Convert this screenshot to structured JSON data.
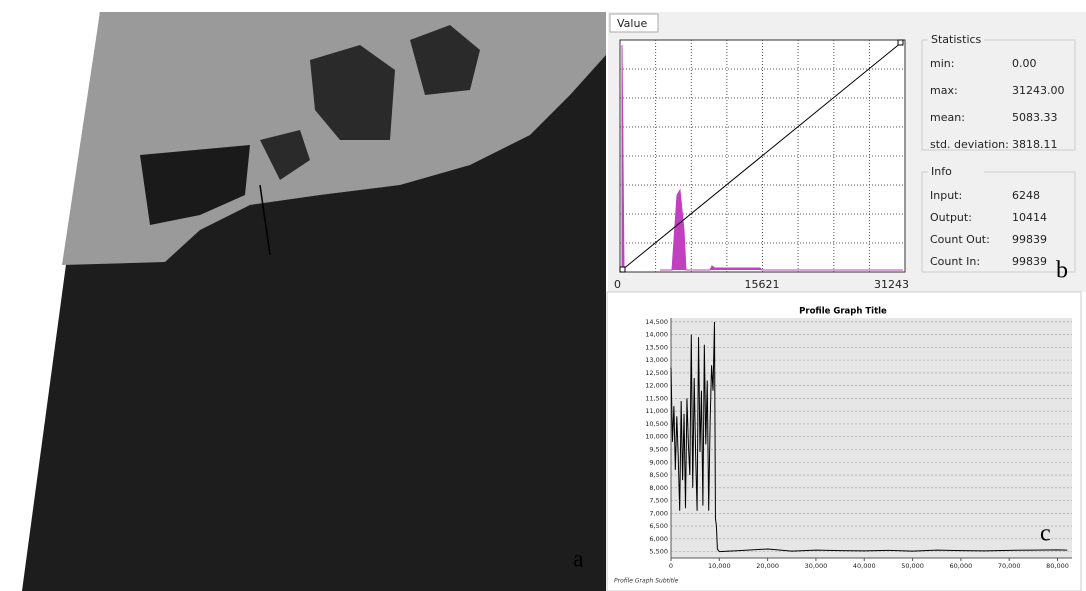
{
  "panel_labels": {
    "a": "a",
    "b": "b",
    "c": "c"
  },
  "stretch_dialog": {
    "tab": "Value",
    "histogram_axis": [
      "0",
      "15621",
      "31243"
    ],
    "statistics": {
      "title": "Statistics",
      "rows": [
        [
          "min:",
          "0.00"
        ],
        [
          "max:",
          "31243.00"
        ],
        [
          "mean:",
          "5083.33"
        ],
        [
          "std. deviation:",
          "3818.11"
        ]
      ]
    },
    "info": {
      "title": "Info",
      "rows": [
        [
          "Input:",
          "6248"
        ],
        [
          "Output:",
          "10414"
        ],
        [
          "Count Out:",
          "99839"
        ],
        [
          "Count In:",
          "99839"
        ]
      ]
    }
  },
  "chart_data": {
    "type": "line",
    "title": "Profile Graph Title",
    "subtitle": "Profile Graph Subtitle",
    "x": [
      0,
      300,
      600,
      900,
      1200,
      1500,
      1800,
      2100,
      2400,
      2700,
      3000,
      3300,
      3600,
      3900,
      4200,
      4500,
      4800,
      5100,
      5400,
      5700,
      6000,
      6300,
      6600,
      6900,
      7200,
      7500,
      7800,
      8100,
      8400,
      8700,
      9000,
      9200,
      9400,
      9600,
      10000,
      15000,
      20000,
      25000,
      30000,
      35000,
      40000,
      45000,
      50000,
      55000,
      60000,
      65000,
      70000,
      75000,
      80000,
      82000
    ],
    "values": [
      12700,
      9800,
      11200,
      8700,
      10800,
      9200,
      7100,
      11400,
      8300,
      10900,
      7200,
      11500,
      9700,
      8500,
      14000,
      8000,
      12300,
      9300,
      7100,
      13900,
      9400,
      11800,
      7300,
      13600,
      9700,
      12200,
      7100,
      10600,
      12800,
      11800,
      14500,
      6800,
      6500,
      5600,
      5500,
      5550,
      5600,
      5520,
      5560,
      5540,
      5530,
      5550,
      5520,
      5560,
      5540,
      5530,
      5550,
      5560,
      5570,
      5560
    ],
    "color": "#000000",
    "xlim": [
      0,
      83000
    ],
    "ylim": [
      5250,
      14650
    ],
    "xticks": [
      0,
      {
        "value": 10000,
        "label": "10,000"
      },
      {
        "value": 20000,
        "label": "20,000"
      },
      {
        "value": 30000,
        "label": "30,000"
      },
      {
        "value": 40000,
        "label": "40,000"
      },
      {
        "value": 50000,
        "label": "50,000"
      },
      {
        "value": 60000,
        "label": "60,000"
      },
      {
        "value": 70000,
        "label": "70,000"
      },
      {
        "value": 80000,
        "label": "80,000"
      }
    ],
    "yticks": [
      {
        "value": 5500,
        "label": "5,500"
      },
      {
        "value": 6000,
        "label": "6,000"
      },
      {
        "value": 6500,
        "label": "6,500"
      },
      {
        "value": 7000,
        "label": "7,000"
      },
      {
        "value": 7500,
        "label": "7,500"
      },
      {
        "value": 8000,
        "label": "8,000"
      },
      {
        "value": 8500,
        "label": "8,500"
      },
      {
        "value": 9000,
        "label": "9,000"
      },
      {
        "value": 9500,
        "label": "9,500"
      },
      {
        "value": 10000,
        "label": "10,000"
      },
      {
        "value": 10500,
        "label": "10,500"
      },
      {
        "value": 11000,
        "label": "11,000"
      },
      {
        "value": 11500,
        "label": "11,500"
      },
      {
        "value": 12000,
        "label": "12,000"
      },
      {
        "value": 12500,
        "label": "12,500"
      },
      {
        "value": 13000,
        "label": "13,000"
      },
      {
        "value": 13500,
        "label": "13,500"
      },
      {
        "value": 14000,
        "label": "14,000"
      },
      {
        "value": 14500,
        "label": "14,500"
      }
    ],
    "grid": true
  }
}
